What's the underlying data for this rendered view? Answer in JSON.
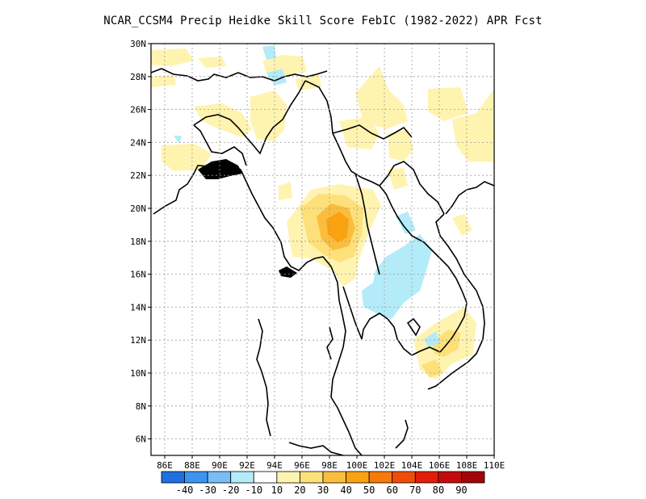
{
  "title": "NCAR_CCSM4 Precip Heidke Skill Score FebIC (1982-2022) APR Fcst",
  "lat_labels": [
    "30N",
    "28N",
    "26N",
    "24N",
    "22N",
    "20N",
    "18N",
    "16N",
    "14N",
    "12N",
    "10N",
    "8N",
    "6N"
  ],
  "lon_labels": [
    "86E",
    "88E",
    "90E",
    "92E",
    "94E",
    "96E",
    "98E",
    "100E",
    "102E",
    "104E",
    "106E",
    "108E",
    "110E"
  ],
  "colorbar": {
    "colors": [
      "#1e6fe0",
      "#3d93f0",
      "#78bdf5",
      "#b3ecf8",
      "#ffffff",
      "#fff3b0",
      "#fde07a",
      "#fbbd3e",
      "#f9a212",
      "#f57a09",
      "#f04e08",
      "#e21e08",
      "#c40c0c",
      "#a10505"
    ],
    "labels": [
      "-40",
      "-30",
      "-20",
      "-10",
      "10",
      "20",
      "30",
      "40",
      "50",
      "60",
      "70",
      "80",
      "90"
    ]
  },
  "map": {
    "lon_range": [
      85,
      110
    ],
    "lat_range": [
      5,
      30
    ],
    "grid": true
  }
}
